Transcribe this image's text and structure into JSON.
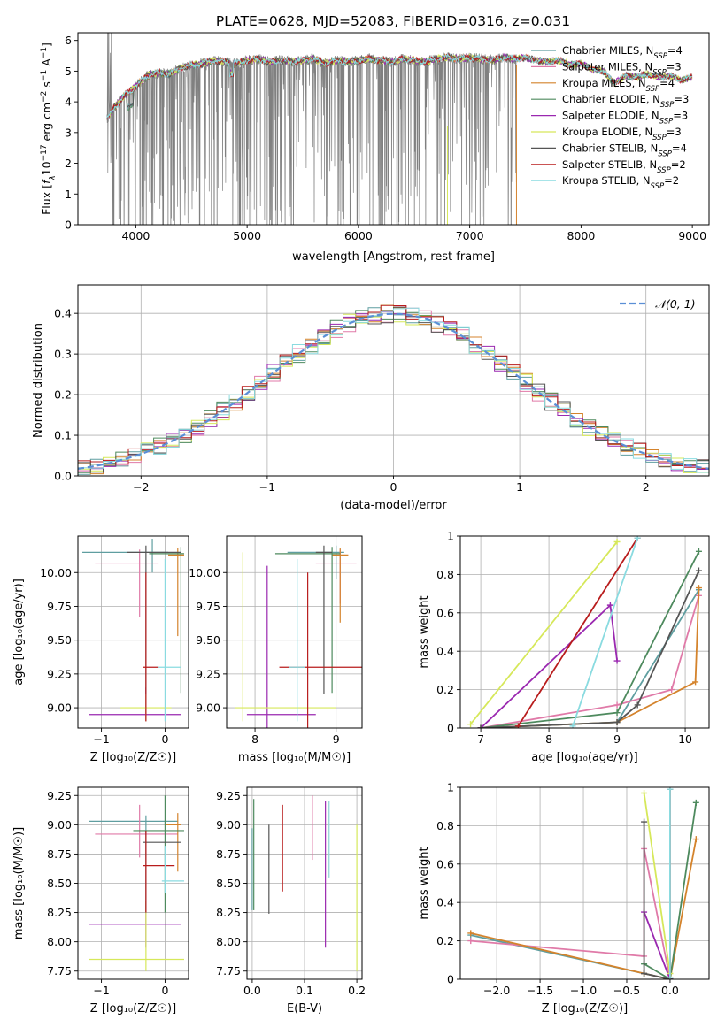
{
  "figure_title": "PLATE=0628, MJD=52083, FIBERID=0316, z=0.031",
  "series_styles": [
    {
      "name": "Chabrier MILES",
      "nssp": "4",
      "color": "#5f9ea0"
    },
    {
      "name": "Salpeter MILES",
      "nssp": "3",
      "color": "#e07aa8"
    },
    {
      "name": "Kroupa MILES",
      "nssp": "4",
      "color": "#d4832c"
    },
    {
      "name": "Chabrier ELODIE",
      "nssp": "3",
      "color": "#4e8a5e"
    },
    {
      "name": "Salpeter ELODIE",
      "nssp": "3",
      "color": "#9a28b0"
    },
    {
      "name": "Kroupa ELODIE",
      "nssp": "3",
      "color": "#d6e85a"
    },
    {
      "name": "Chabrier STELIB",
      "nssp": "4",
      "color": "#555555"
    },
    {
      "name": "Salpeter STELIB",
      "nssp": "2",
      "color": "#b81c1c"
    },
    {
      "name": "Kroupa STELIB",
      "nssp": "2",
      "color": "#8adbe0"
    }
  ],
  "chart_data": [
    {
      "id": "spectrum",
      "type": "line",
      "xlabel": "wavelength [Angstrom, rest frame]",
      "ylabel_main": "Flux [",
      "ylabel_math": "f",
      "ylabel_sub": "λ",
      "ylabel_rest": "10",
      "ylabel_exp": "−17",
      "ylabel_unit": " erg cm",
      "ylabel_exp2": "−2",
      "ylabel_unit2": " s",
      "ylabel_exp3": "−1",
      "ylabel_unit3": " A",
      "ylabel_exp4": "−1",
      "ylabel_close": "]",
      "xlim": [
        3480,
        9150
      ],
      "ylim": [
        0,
        6.25
      ],
      "xticks": [
        4000,
        5000,
        6000,
        7000,
        8000,
        9000
      ],
      "yticks": [
        0,
        1,
        2,
        3,
        4,
        5,
        6
      ],
      "data_color": "#808080",
      "data_x_range": [
        3740,
        7420
      ],
      "continuum_x": [
        3740,
        3800,
        3900,
        4000,
        4100,
        4200,
        4300,
        4400,
        4500,
        4600,
        4700,
        4800,
        4900,
        5000,
        5100,
        5200,
        5300,
        5400,
        5500,
        5600,
        5700,
        5800,
        5900,
        6000,
        6100,
        6200,
        6300,
        6400,
        6500,
        6600,
        6700,
        6800,
        6900,
        7000,
        7100,
        7200,
        7300,
        7400,
        7500,
        7600,
        7700,
        7800,
        7900,
        8000,
        8100,
        8200,
        8300,
        8400,
        8500,
        8600,
        8700,
        8800,
        8900,
        9000
      ],
      "continuum_y": [
        3.4,
        3.8,
        4.2,
        4.5,
        4.85,
        4.95,
        4.9,
        5.1,
        5.2,
        5.25,
        5.35,
        5.3,
        5.25,
        5.35,
        5.4,
        5.3,
        5.35,
        5.3,
        5.35,
        5.4,
        5.25,
        5.35,
        5.3,
        5.35,
        5.4,
        5.35,
        5.3,
        5.4,
        5.35,
        5.3,
        5.4,
        5.45,
        5.4,
        5.45,
        5.4,
        5.35,
        5.45,
        5.4,
        5.45,
        5.35,
        5.3,
        5.35,
        5.2,
        5.25,
        5.05,
        5.0,
        4.6,
        4.85,
        4.8,
        4.9,
        4.8,
        4.85,
        4.7,
        4.8
      ]
    },
    {
      "id": "residuals",
      "type": "step",
      "xlabel": "(data-model)/error",
      "ylabel": "Normed distribution",
      "xlim": [
        -2.5,
        2.5
      ],
      "ylim": [
        0,
        0.47
      ],
      "xticks": [
        -2,
        -1,
        0,
        1,
        2
      ],
      "yticks": [
        0.0,
        0.1,
        0.2,
        0.3,
        0.4
      ],
      "legend_label": "𝒩(0, 1)",
      "gauss_color": "#5b8fd6",
      "bin_width": 0.1
    },
    {
      "id": "age-vs-z",
      "type": "errorbar",
      "xlabel": "Z [log₁₀(Z/Z☉)]",
      "ylabel": "age  [log₁₀(age/yr)]",
      "xlim": [
        -1.37,
        0.37
      ],
      "ylim": [
        8.85,
        10.27
      ],
      "xticks": [
        -1,
        0
      ],
      "yticks": [
        9.0,
        9.25,
        9.5,
        9.75,
        10.0
      ],
      "ytick_labels": [
        "9.00",
        "9.25",
        "9.50",
        "9.75",
        "10.00"
      ],
      "points": [
        {
          "s": 0,
          "x": -0.2,
          "xerr": [
            1.1,
            0.25
          ],
          "y": 10.15,
          "yerr": [
            0.15,
            0.1
          ]
        },
        {
          "s": 1,
          "x": -0.4,
          "xerr": [
            0.7,
            0.3
          ],
          "y": 10.07,
          "yerr": [
            0.4,
            0.1
          ]
        },
        {
          "s": 2,
          "x": 0.2,
          "xerr": [
            0.15,
            0.1
          ],
          "y": 10.13,
          "yerr": [
            0.6,
            0.05
          ]
        },
        {
          "s": 3,
          "x": 0.25,
          "xerr": [
            0.5,
            0.05
          ],
          "y": 10.14,
          "yerr": [
            1.03,
            0.05
          ]
        },
        {
          "s": 4,
          "x": -0.3,
          "xerr": [
            0.9,
            0.55
          ],
          "y": 8.95,
          "yerr": [
            0.05,
            0.2
          ]
        },
        {
          "s": 5,
          "x": -0.3,
          "xerr": [
            0.4,
            0.4
          ],
          "y": 9.0,
          "yerr": [
            0.1,
            0.1
          ]
        },
        {
          "s": 6,
          "x": -0.3,
          "xerr": [
            0.3,
            0.55
          ],
          "y": 10.15,
          "yerr": [
            1.05,
            0.05
          ]
        },
        {
          "s": 7,
          "x": -0.3,
          "xerr": [
            0.05,
            0.2
          ],
          "y": 9.3,
          "yerr": [
            0.4,
            0.7
          ]
        },
        {
          "s": 8,
          "x": 0.0,
          "xerr": [
            0.1,
            0.25
          ],
          "y": 9.3,
          "yerr": [
            0.4,
            0.8
          ]
        }
      ]
    },
    {
      "id": "age-vs-mass",
      "type": "errorbar",
      "xlabel": "mass [log₁₀(M/M☉)]",
      "ylabel": "",
      "xlim": [
        7.65,
        9.32
      ],
      "ylim": [
        8.85,
        10.27
      ],
      "xticks": [
        8,
        9
      ],
      "yticks": [
        9.0,
        9.25,
        9.5,
        9.75,
        10.0
      ],
      "ytick_labels": [
        "9.00",
        "9.25",
        "9.50",
        "9.75",
        "10.00"
      ],
      "points": [
        {
          "s": 0,
          "x": 9.0,
          "xerr": [
            0.6,
            0.1
          ],
          "y": 10.15,
          "yerr": [
            0.2,
            0.05
          ]
        },
        {
          "s": 1,
          "x": 9.05,
          "xerr": [
            0.3,
            0.2
          ],
          "y": 10.07,
          "yerr": [
            0.3,
            0.1
          ]
        },
        {
          "s": 2,
          "x": 9.05,
          "xerr": [
            0.1,
            0.1
          ],
          "y": 10.13,
          "yerr": [
            0.5,
            0.05
          ]
        },
        {
          "s": 3,
          "x": 8.95,
          "xerr": [
            0.7,
            0.1
          ],
          "y": 10.14,
          "yerr": [
            1.03,
            0.05
          ]
        },
        {
          "s": 4,
          "x": 8.15,
          "xerr": [
            0.25,
            0.6
          ],
          "y": 8.95,
          "yerr": [
            0.1,
            1.1
          ]
        },
        {
          "s": 5,
          "x": 7.85,
          "xerr": [
            0.1,
            1.15
          ],
          "y": 9.0,
          "yerr": [
            0.1,
            1.15
          ]
        },
        {
          "s": 6,
          "x": 8.85,
          "xerr": [
            0.1,
            0.1
          ],
          "y": 10.15,
          "yerr": [
            1.05,
            0.05
          ]
        },
        {
          "s": 7,
          "x": 8.65,
          "xerr": [
            0.35,
            0.75
          ],
          "y": 9.3,
          "yerr": [
            0.45,
            0.7
          ]
        },
        {
          "s": 8,
          "x": 8.52,
          "xerr": [
            0.1,
            0.1
          ],
          "y": 9.3,
          "yerr": [
            0.4,
            0.8
          ]
        }
      ]
    },
    {
      "id": "weight-vs-age",
      "type": "line",
      "xlabel": "age  [log₁₀(age/yr)]",
      "ylabel": "mass weight",
      "xlim": [
        6.7,
        10.35
      ],
      "ylim": [
        0,
        1.0
      ],
      "xticks": [
        7,
        8,
        9,
        10
      ],
      "yticks": [
        0.0,
        0.2,
        0.4,
        0.6,
        0.8,
        1.0
      ],
      "series": [
        {
          "s": 0,
          "x": [
            7.0,
            9.0,
            10.2
          ],
          "y": [
            0.0,
            0.03,
            0.72
          ]
        },
        {
          "s": 1,
          "x": [
            7.0,
            9.0,
            9.8,
            10.2
          ],
          "y": [
            0.0,
            0.12,
            0.2,
            0.69
          ]
        },
        {
          "s": 2,
          "x": [
            7.0,
            9.0,
            10.15,
            10.2
          ],
          "y": [
            0.0,
            0.03,
            0.24,
            0.73
          ]
        },
        {
          "s": 3,
          "x": [
            7.0,
            9.0,
            10.2
          ],
          "y": [
            0.0,
            0.08,
            0.92
          ]
        },
        {
          "s": 4,
          "x": [
            7.0,
            8.9,
            9.0
          ],
          "y": [
            0.0,
            0.64,
            0.35
          ]
        },
        {
          "s": 5,
          "x": [
            6.85,
            9.0
          ],
          "y": [
            0.02,
            0.97
          ]
        },
        {
          "s": 6,
          "x": [
            7.0,
            9.0,
            9.3,
            10.2
          ],
          "y": [
            0.0,
            0.03,
            0.12,
            0.82
          ]
        },
        {
          "s": 7,
          "x": [
            7.55,
            9.3
          ],
          "y": [
            0.01,
            0.99
          ]
        },
        {
          "s": 8,
          "x": [
            8.35,
            9.3
          ],
          "y": [
            0.01,
            0.99
          ]
        }
      ]
    },
    {
      "id": "mass-vs-z",
      "type": "errorbar",
      "xlabel": "Z [log₁₀(Z/Z☉)]",
      "ylabel": "mass [log₁₀(M/M☉)]",
      "xlim": [
        -1.37,
        0.37
      ],
      "ylim": [
        7.68,
        9.32
      ],
      "xticks": [
        -1,
        0
      ],
      "yticks": [
        7.75,
        8.0,
        8.25,
        8.5,
        8.75,
        9.0,
        9.25
      ],
      "ytick_labels": [
        "7.75",
        "8.00",
        "8.25",
        "8.50",
        "8.75",
        "9.00",
        "9.25"
      ],
      "points": [
        {
          "s": 0,
          "x": -0.3,
          "xerr": [
            0.9,
            0.5
          ],
          "y": 9.03,
          "yerr": [
            0.1,
            0.05
          ]
        },
        {
          "s": 1,
          "x": -0.4,
          "xerr": [
            0.7,
            0.6
          ],
          "y": 8.92,
          "yerr": [
            0.2,
            0.25
          ]
        },
        {
          "s": 2,
          "x": 0.2,
          "xerr": [
            0.2,
            0.05
          ],
          "y": 9.0,
          "yerr": [
            0.4,
            0.1
          ]
        },
        {
          "s": 3,
          "x": 0.0,
          "xerr": [
            0.5,
            0.3
          ],
          "y": 8.95,
          "yerr": [
            0.7,
            0.3
          ]
        },
        {
          "s": 4,
          "x": -0.3,
          "xerr": [
            0.9,
            0.55
          ],
          "y": 8.15,
          "yerr": [
            0.2,
            0.1
          ]
        },
        {
          "s": 5,
          "x": -0.3,
          "xerr": [
            0.9,
            0.6
          ],
          "y": 7.85,
          "yerr": [
            0.1,
            0.5
          ]
        },
        {
          "s": 6,
          "x": -0.3,
          "xerr": [
            0.05,
            0.55
          ],
          "y": 8.85,
          "yerr": [
            0.6,
            0.1
          ]
        },
        {
          "s": 7,
          "x": -0.3,
          "xerr": [
            0.05,
            0.45
          ],
          "y": 8.65,
          "yerr": [
            0.4,
            0.3
          ]
        },
        {
          "s": 8,
          "x": 0.0,
          "xerr": [
            0.05,
            0.3
          ],
          "y": 8.52,
          "yerr": [
            0.1,
            0.3
          ]
        }
      ]
    },
    {
      "id": "mass-vs-ebv",
      "type": "errorbar",
      "xlabel": "E(B-V)",
      "ylabel": "",
      "xlim": [
        -0.01,
        0.21
      ],
      "ylim": [
        7.68,
        9.32
      ],
      "xticks": [
        0.0,
        0.1,
        0.2
      ],
      "xtick_labels": [
        "0.0",
        "0.1",
        "0.2"
      ],
      "yticks": [
        7.75,
        8.0,
        8.25,
        8.5,
        8.75,
        9.0,
        9.25
      ],
      "ytick_labels": [
        "7.75",
        "8.00",
        "8.25",
        "8.50",
        "8.75",
        "9.00",
        "9.25"
      ],
      "points": [
        {
          "s": 0,
          "x": 0.0,
          "xerr": [
            0.0,
            0.0
          ],
          "y": 8.62,
          "yerr": [
            0.35,
            0.35
          ]
        },
        {
          "s": 1,
          "x": 0.115,
          "xerr": [
            0.0,
            0.0
          ],
          "y": 8.98,
          "yerr": [
            0.28,
            0.27
          ]
        },
        {
          "s": 2,
          "x": 0.145,
          "xerr": [
            0.0,
            0.0
          ],
          "y": 8.9,
          "yerr": [
            0.35,
            0.3
          ]
        },
        {
          "s": 3,
          "x": 0.003,
          "xerr": [
            0.0,
            0.0
          ],
          "y": 8.62,
          "yerr": [
            0.35,
            0.6
          ]
        },
        {
          "s": 4,
          "x": 0.14,
          "xerr": [
            0.0,
            0.0
          ],
          "y": 8.6,
          "yerr": [
            0.65,
            0.6
          ]
        },
        {
          "s": 5,
          "x": 0.2,
          "xerr": [
            0.0,
            0.0
          ],
          "y": 8.4,
          "yerr": [
            0.65,
            0.6
          ]
        },
        {
          "s": 6,
          "x": 0.032,
          "xerr": [
            0.0,
            0.0
          ],
          "y": 8.62,
          "yerr": [
            0.38,
            0.38
          ]
        },
        {
          "s": 7,
          "x": 0.058,
          "xerr": [
            0.0,
            0.0
          ],
          "y": 8.8,
          "yerr": [
            0.37,
            0.37
          ]
        },
        {
          "s": 8,
          "x": 0.147,
          "xerr": [
            0.0,
            0.0
          ],
          "y": 8.9,
          "yerr": [
            0.35,
            0.3
          ]
        }
      ]
    },
    {
      "id": "weight-vs-z",
      "type": "line",
      "xlabel": "Z [log₁₀(Z/Z☉)]",
      "ylabel": "mass weight",
      "xlim": [
        -2.42,
        0.45
      ],
      "ylim": [
        0,
        1.0
      ],
      "xticks": [
        -2.0,
        -1.5,
        -1.0,
        -0.5,
        0.0
      ],
      "xtick_labels": [
        "−2.0",
        "−1.5",
        "−1.0",
        "−0.5",
        "0.0"
      ],
      "yticks": [
        0.0,
        0.2,
        0.4,
        0.6,
        0.8,
        1.0
      ],
      "series": [
        {
          "s": 0,
          "x": [
            -2.3,
            -0.3,
            0.0
          ],
          "y": [
            0.23,
            0.03,
            0.0
          ]
        },
        {
          "s": 1,
          "x": [
            -2.3,
            -0.3,
            -0.3,
            0.0
          ],
          "y": [
            0.2,
            0.12,
            0.68,
            0.0
          ]
        },
        {
          "s": 2,
          "x": [
            -2.3,
            -0.3,
            0.0,
            0.3
          ],
          "y": [
            0.24,
            0.03,
            0.0,
            0.73
          ]
        },
        {
          "s": 3,
          "x": [
            -0.3,
            0.0,
            0.3
          ],
          "y": [
            0.08,
            0.0,
            0.92
          ]
        },
        {
          "s": 4,
          "x": [
            -0.3,
            0.0
          ],
          "y": [
            0.35,
            0.0
          ]
        },
        {
          "s": 5,
          "x": [
            -0.3,
            0.0
          ],
          "y": [
            0.97,
            0.03
          ]
        },
        {
          "s": 6,
          "x": [
            -0.3,
            -0.3,
            0.0
          ],
          "y": [
            0.82,
            0.03,
            0.0
          ]
        },
        {
          "s": 7,
          "x": [
            0.0,
            0.0
          ],
          "y": [
            0.01,
            0.99
          ]
        },
        {
          "s": 8,
          "x": [
            0.0,
            0.0
          ],
          "y": [
            0.01,
            0.99
          ]
        }
      ]
    }
  ]
}
